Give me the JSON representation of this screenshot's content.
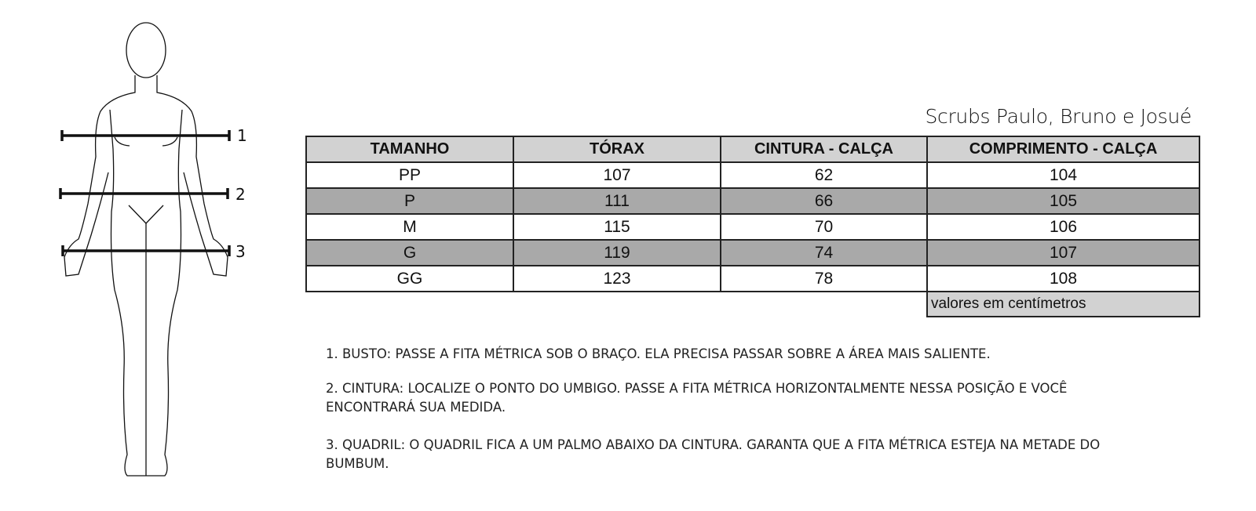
{
  "figure": {
    "markers": [
      "1",
      "2",
      "3"
    ]
  },
  "title": "Scrubs Paulo, Bruno e Josué",
  "table": {
    "headers": [
      "TAMANHO",
      "TÓRAX",
      "CINTURA - CALÇA",
      "COMPRIMENTO - CALÇA"
    ],
    "rows": [
      [
        "PP",
        "107",
        "62",
        "104"
      ],
      [
        "P",
        "111",
        "66",
        "105"
      ],
      [
        "M",
        "115",
        "70",
        "106"
      ],
      [
        "G",
        "119",
        "74",
        "107"
      ],
      [
        "GG",
        "123",
        "78",
        "108"
      ]
    ],
    "note": "valores em centímetros",
    "colors": {
      "header": "#d2d2d2",
      "alt_row": "#a9a9a9"
    }
  },
  "instructions": [
    "1. BUSTO: PASSE A FITA MÉTRICA SOB O BRAÇO. ELA PRECISA PASSAR SOBRE A ÁREA MAIS SALIENTE.",
    "2. CINTURA: LOCALIZE O PONTO DO UMBIGO. PASSE A FITA MÉTRICA HORIZONTALMENTE NESSA POSIÇÃO E VOCÊ ENCONTRARÁ SUA MEDIDA.",
    "3. QUADRIL: O QUADRIL FICA A UM PALMO ABAIXO DA CINTURA. GARANTA QUE A FITA MÉTRICA ESTEJA NA METADE DO BUMBUM."
  ]
}
